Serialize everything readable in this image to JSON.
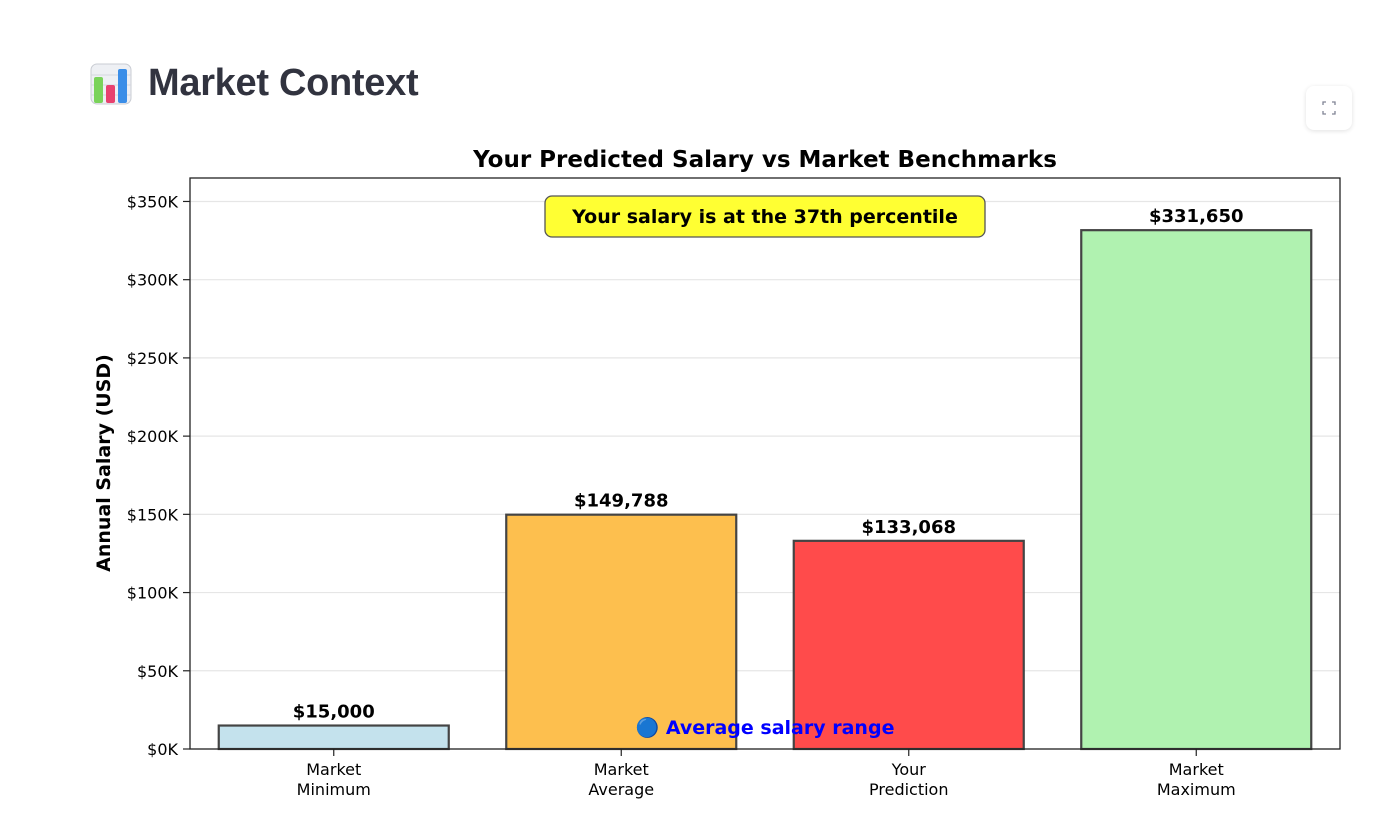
{
  "header": {
    "title": "Market Context",
    "icon": "bar-chart-icon"
  },
  "toolbar": {
    "fullscreen_icon": "fullscreen-icon"
  },
  "colors": {
    "title_text": "#31333f",
    "annotation_box": "#ffff33",
    "annotation_text_blue": "#0000ff"
  },
  "chart_data": {
    "type": "bar",
    "title": "Your Predicted Salary vs Market Benchmarks",
    "xlabel": "",
    "ylabel": "Annual Salary (USD)",
    "categories": [
      [
        "Market",
        "Minimum"
      ],
      [
        "Market",
        "Average"
      ],
      [
        "Your",
        "Prediction"
      ],
      [
        "Market",
        "Maximum"
      ]
    ],
    "values": [
      15000,
      149788,
      133068,
      331650
    ],
    "value_labels": [
      "$15,000",
      "$149,788",
      "$133,068",
      "$331,650"
    ],
    "bar_colors": [
      "#c4e2ed",
      "#fdbf4e",
      "#ff4b4b",
      "#b0f2b0"
    ],
    "ylim": [
      0,
      365000
    ],
    "yticks": [
      0,
      50000,
      100000,
      150000,
      200000,
      250000,
      300000,
      350000
    ],
    "ytick_labels": [
      "$0K",
      "$50K",
      "$100K",
      "$150K",
      "$200K",
      "$250K",
      "$300K",
      "$350K"
    ],
    "grid": "horizontal",
    "annotations": {
      "percentile_box": "Your salary is at the 37th percentile",
      "range_note": "🔵 Average salary range"
    }
  }
}
